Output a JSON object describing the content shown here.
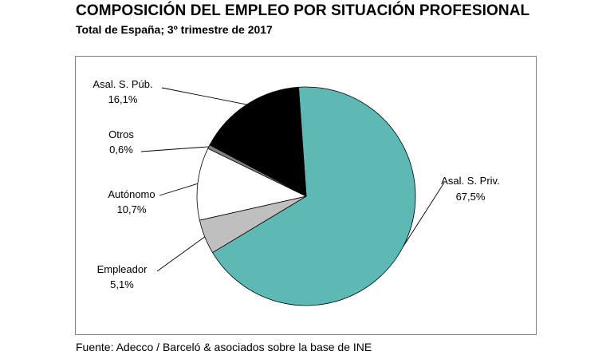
{
  "title": "COMPOSICIÓN DEL EMPLEO POR SITUACIÓN PROFESIONAL",
  "subtitle": "Total de España; 3º trimestre de 2017",
  "source": "Fuente: Adecco / Barceló & asociados sobre la base de INE",
  "chart_data": {
    "type": "pie",
    "title": "COMPOSICIÓN DEL EMPLEO POR SITUACIÓN PROFESIONAL",
    "subtitle": "Total de España; 3º trimestre de 2017",
    "legend": "none",
    "slices": [
      {
        "name": "Asal. S. Priv.",
        "value": 67.5,
        "label": "67,5%",
        "color": "#5eb8b3"
      },
      {
        "name": "Empleador",
        "value": 5.1,
        "label": "5,1%",
        "color": "#bfbfbf"
      },
      {
        "name": "Autónomo",
        "value": 10.7,
        "label": "10,7%",
        "color": "#ffffff"
      },
      {
        "name": "Otros",
        "value": 0.6,
        "label": "0,6%",
        "color": "#7f7f7f"
      },
      {
        "name": "Asal. S. Púb.",
        "value": 16.1,
        "label": "16,1%",
        "color": "#000000"
      }
    ]
  }
}
